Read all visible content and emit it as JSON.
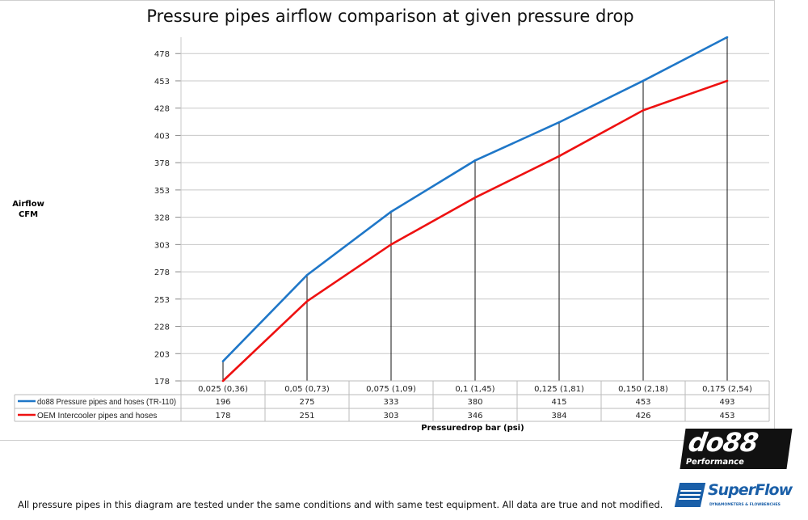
{
  "chart_data": {
    "type": "line",
    "title": "Pressure pipes airflow comparison at given pressure drop",
    "ylabel": "Airflow CFM",
    "xlabel": "Pressuredrop bar (psi)",
    "categories": [
      "0,025 (0,36)",
      "0,05 (0,73)",
      "0,075 (1,09)",
      "0,1 (1,45)",
      "0,125 (1,81)",
      "0,150 (2,18)",
      "0,175 (2,54)"
    ],
    "yticks": [
      178,
      203,
      228,
      253,
      278,
      303,
      328,
      353,
      378,
      403,
      428,
      453,
      478
    ],
    "ylim": [
      178,
      493
    ],
    "grid": true,
    "legend": "data-table",
    "series": [
      {
        "name": "do88 Pressure pipes and hoses (TR-110)",
        "color": "#1f77c8",
        "values": [
          196,
          275,
          333,
          380,
          415,
          453,
          493
        ]
      },
      {
        "name": "OEM Intercooler pipes and hoses",
        "color": "#ee1111",
        "values": [
          178,
          251,
          303,
          346,
          384,
          426,
          453
        ]
      }
    ]
  },
  "footer": "All pressure pipes in this diagram are tested under the same conditions and with same test equipment. All data are true and not modified.",
  "logos": {
    "do88": "do88",
    "do88_sub": "Performance",
    "superflow": "SuperFlow",
    "superflow_sub": "DYNAMOMETERS & FLOWBENCHES"
  }
}
